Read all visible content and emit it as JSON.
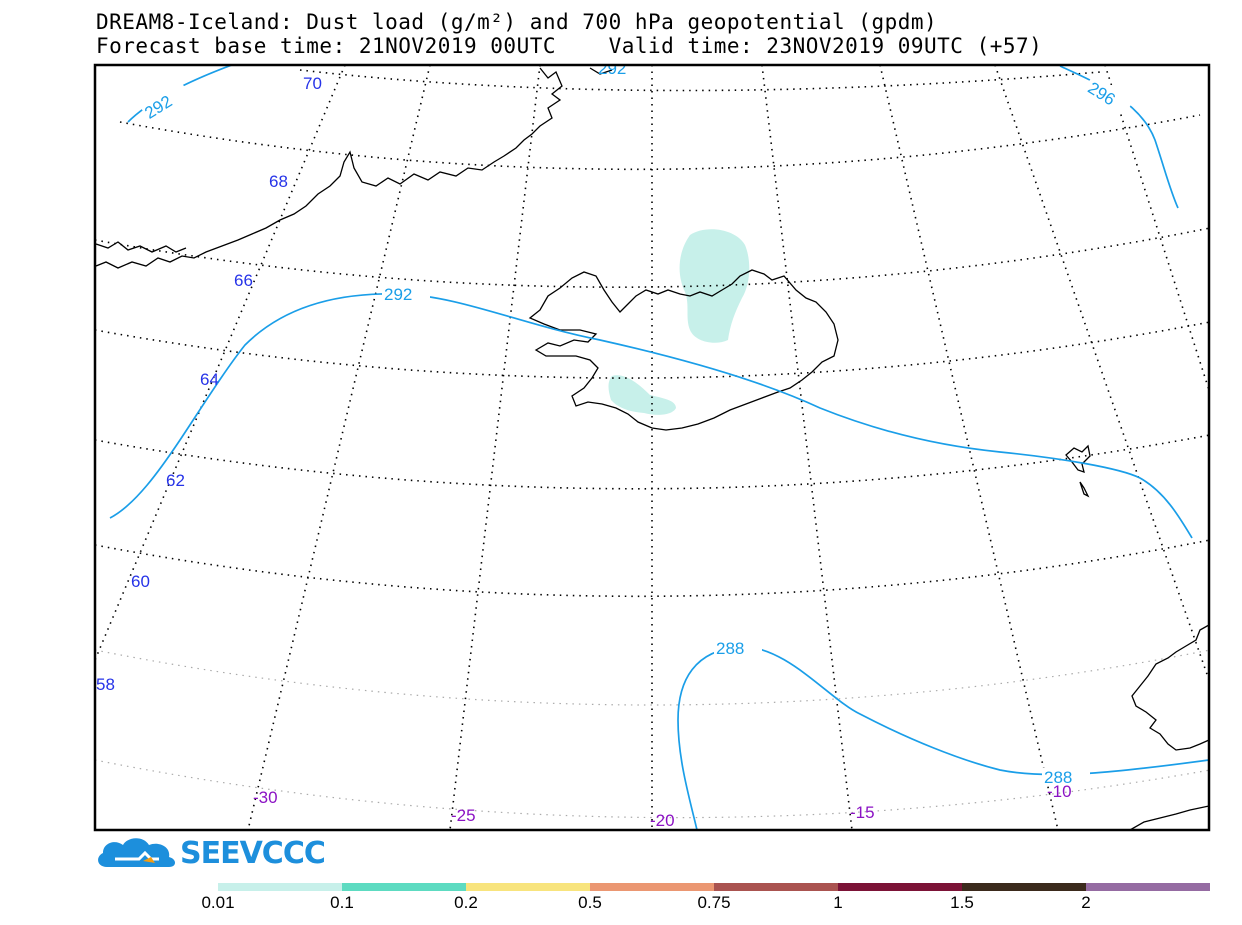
{
  "title_line1": "DREAM8-Iceland: Dust load (g/m²) and 700 hPa geopotential (gpdm)",
  "title_line2": "Forecast base time: 21NOV2019 00UTC    Valid time: 23NOV2019 09UTC (+57)",
  "lat_labels": [
    "70",
    "68",
    "66",
    "64",
    "62",
    "60",
    "58"
  ],
  "lon_labels": [
    "-30",
    "-25",
    "-20",
    "-15",
    "-10"
  ],
  "contour_labels": [
    "292",
    "296",
    "292",
    "288",
    "288",
    "292"
  ],
  "logo_text": "SEEVCCC",
  "colorbar": {
    "colors": [
      "#c7f0ea",
      "#5ddbc1",
      "#f8e47d",
      "#eb9772",
      "#aa5350",
      "#7c1337",
      "#3b2a1c",
      "#956ba2"
    ],
    "labels": [
      "0.01",
      "0.1",
      "0.2",
      "0.5",
      "0.75",
      "1",
      "1.5",
      "2"
    ]
  },
  "colors": {
    "contour": "#1a9ee8",
    "lat_label": "#2633e8",
    "lon_label": "#8b12c4",
    "dust": "#c7f0ea"
  }
}
